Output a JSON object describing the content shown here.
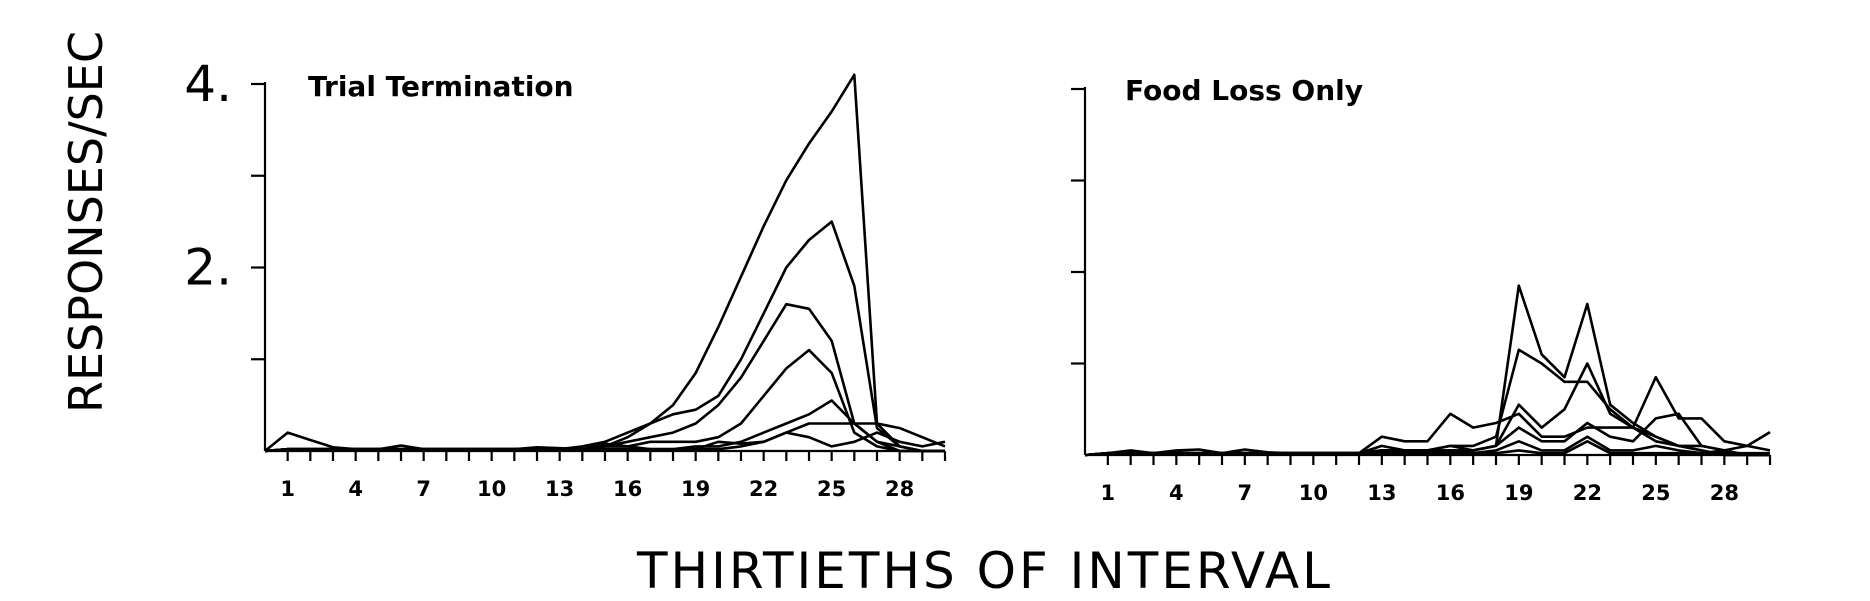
{
  "ylabel": "RESPONSES/SEC",
  "xlabel": "THIRTIETHS OF INTERVAL",
  "chart_data": [
    {
      "type": "line",
      "title": "Trial Termination",
      "xlabel": "THIRTIETHS OF INTERVAL",
      "ylabel": "RESPONSES/SEC",
      "xlim": [
        0,
        30
      ],
      "ylim": [
        0,
        4
      ],
      "x_ticks": [
        1,
        2,
        3,
        4,
        5,
        6,
        7,
        8,
        9,
        10,
        11,
        12,
        13,
        14,
        15,
        16,
        17,
        18,
        19,
        20,
        21,
        22,
        23,
        24,
        25,
        26,
        27,
        28,
        29,
        30
      ],
      "x_tick_labels": [
        "1",
        "4",
        "7",
        "10",
        "13",
        "16",
        "19",
        "22",
        "25",
        "28"
      ],
      "x_tick_label_values": [
        1,
        4,
        7,
        10,
        13,
        16,
        19,
        22,
        25,
        28
      ],
      "y_ticks": [
        1,
        2,
        3,
        4
      ],
      "y_tick_labels": [
        "2.",
        "4."
      ],
      "y_tick_label_values": [
        2,
        4
      ],
      "x": [
        0,
        1,
        2,
        3,
        4,
        5,
        6,
        7,
        8,
        9,
        10,
        11,
        12,
        13,
        14,
        15,
        16,
        17,
        18,
        19,
        20,
        21,
        22,
        23,
        24,
        25,
        26,
        27,
        28,
        29,
        30
      ],
      "series": [
        {
          "values": [
            0,
            0.02,
            0.02,
            0.02,
            0.02,
            0.02,
            0.02,
            0.02,
            0.02,
            0.02,
            0.02,
            0.02,
            0.02,
            0.02,
            0.02,
            0.05,
            0.15,
            0.3,
            0.5,
            0.85,
            1.35,
            1.9,
            2.45,
            2.95,
            3.35,
            3.7,
            4.1,
            0.3,
            0.05,
            0,
            0
          ]
        },
        {
          "values": [
            0,
            0.02,
            0.02,
            0.02,
            0.02,
            0.02,
            0.02,
            0.02,
            0.02,
            0.02,
            0.02,
            0.02,
            0.02,
            0.02,
            0.05,
            0.1,
            0.2,
            0.3,
            0.4,
            0.45,
            0.6,
            1.0,
            1.5,
            2.0,
            2.3,
            2.5,
            1.8,
            0.25,
            0.05,
            0,
            0
          ]
        },
        {
          "values": [
            0,
            0.02,
            0.02,
            0.02,
            0.02,
            0.02,
            0.02,
            0.02,
            0.02,
            0.02,
            0.02,
            0.02,
            0.02,
            0.02,
            0.02,
            0.05,
            0.1,
            0.15,
            0.2,
            0.3,
            0.5,
            0.8,
            1.2,
            1.6,
            1.55,
            1.2,
            0.3,
            0.1,
            0,
            0,
            0
          ]
        },
        {
          "values": [
            0,
            0.02,
            0.02,
            0.02,
            0.02,
            0.02,
            0.02,
            0.02,
            0.02,
            0.02,
            0.02,
            0.02,
            0.02,
            0.02,
            0.02,
            0.05,
            0.05,
            0.1,
            0.1,
            0.1,
            0.15,
            0.3,
            0.6,
            0.9,
            1.1,
            0.85,
            0.2,
            0.05,
            0,
            0,
            0
          ]
        },
        {
          "values": [
            0,
            0.02,
            0.02,
            0.02,
            0.02,
            0.02,
            0.02,
            0.02,
            0.02,
            0.02,
            0.02,
            0.02,
            0.02,
            0.02,
            0.02,
            0.02,
            0.02,
            0.02,
            0.02,
            0.05,
            0.05,
            0.1,
            0.2,
            0.3,
            0.4,
            0.55,
            0.3,
            0.1,
            0.05,
            0,
            0
          ]
        },
        {
          "values": [
            0,
            0.2,
            0.12,
            0.04,
            0.02,
            0.02,
            0.06,
            0.02,
            0.02,
            0.02,
            0.02,
            0.02,
            0.04,
            0.03,
            0.02,
            0.02,
            0.02,
            0.02,
            0.02,
            0.02,
            0.02,
            0.05,
            0.1,
            0.2,
            0.3,
            0.3,
            0.3,
            0.3,
            0.25,
            0.15,
            0.05
          ]
        },
        {
          "values": [
            0,
            0.02,
            0.02,
            0.02,
            0.02,
            0.02,
            0.02,
            0.02,
            0.02,
            0.02,
            0.02,
            0.02,
            0.02,
            0.02,
            0.02,
            0.08,
            0.05,
            0.02,
            0.02,
            0.02,
            0.1,
            0.08,
            0.1,
            0.2,
            0.15,
            0.05,
            0.1,
            0.2,
            0.1,
            0.05,
            0.1
          ]
        }
      ]
    },
    {
      "type": "line",
      "title": "Food Loss Only",
      "xlabel": "THIRTIETHS OF INTERVAL",
      "ylabel": "RESPONSES/SEC",
      "xlim": [
        0,
        30
      ],
      "ylim": [
        0,
        4
      ],
      "x_ticks": [
        1,
        2,
        3,
        4,
        5,
        6,
        7,
        8,
        9,
        10,
        11,
        12,
        13,
        14,
        15,
        16,
        17,
        18,
        19,
        20,
        21,
        22,
        23,
        24,
        25,
        26,
        27,
        28,
        29,
        30
      ],
      "x_tick_labels": [
        "1",
        "4",
        "7",
        "10",
        "13",
        "16",
        "19",
        "22",
        "25",
        "28"
      ],
      "x_tick_label_values": [
        1,
        4,
        7,
        10,
        13,
        16,
        19,
        22,
        25,
        28
      ],
      "y_ticks": [
        1,
        2,
        3,
        4
      ],
      "y_tick_labels": [],
      "y_tick_label_values": [],
      "x": [
        0,
        1,
        2,
        3,
        4,
        5,
        6,
        7,
        8,
        9,
        10,
        11,
        12,
        13,
        14,
        15,
        16,
        17,
        18,
        19,
        20,
        21,
        22,
        23,
        24,
        25,
        26,
        27,
        28,
        29,
        30
      ],
      "series": [
        {
          "values": [
            0,
            0.02,
            0.02,
            0.02,
            0.02,
            0.02,
            0.02,
            0.02,
            0.02,
            0.02,
            0.02,
            0.02,
            0.02,
            0.05,
            0.05,
            0.05,
            0.05,
            0.05,
            0.1,
            1.85,
            1.1,
            0.85,
            1.65,
            0.55,
            0.35,
            0.2,
            0.1,
            0.1,
            0.05,
            0,
            0
          ]
        },
        {
          "values": [
            0,
            0.02,
            0.02,
            0.02,
            0.02,
            0.02,
            0.02,
            0.02,
            0.02,
            0.02,
            0.02,
            0.02,
            0.02,
            0.05,
            0.05,
            0.05,
            0.1,
            0.1,
            0.2,
            1.15,
            1.0,
            0.8,
            0.8,
            0.5,
            0.3,
            0.15,
            0.1,
            0.05,
            0,
            0,
            0
          ]
        },
        {
          "values": [
            0,
            0.02,
            0.02,
            0.02,
            0.02,
            0.02,
            0.02,
            0.02,
            0.02,
            0.02,
            0.02,
            0.02,
            0.02,
            0.05,
            0.05,
            0.05,
            0.05,
            0.05,
            0.1,
            0.55,
            0.3,
            0.5,
            1.0,
            0.45,
            0.3,
            0.2,
            0.1,
            0.05,
            0,
            0,
            0
          ]
        },
        {
          "values": [
            0,
            0.02,
            0.02,
            0.02,
            0.02,
            0.02,
            0.02,
            0.02,
            0.02,
            0.02,
            0.02,
            0.02,
            0.02,
            0.2,
            0.15,
            0.15,
            0.45,
            0.3,
            0.35,
            0.45,
            0.2,
            0.2,
            0.3,
            0.3,
            0.3,
            0.85,
            0.4,
            0.4,
            0.15,
            0.1,
            0.25
          ]
        },
        {
          "values": [
            0,
            0.02,
            0.02,
            0.02,
            0.02,
            0.02,
            0.02,
            0.02,
            0.02,
            0.02,
            0.02,
            0.02,
            0.02,
            0.1,
            0.05,
            0.05,
            0.1,
            0.05,
            0.1,
            0.3,
            0.15,
            0.15,
            0.35,
            0.2,
            0.15,
            0.4,
            0.45,
            0.1,
            0.05,
            0,
            0
          ]
        },
        {
          "values": [
            0,
            0.02,
            0.05,
            0.02,
            0.05,
            0.06,
            0.02,
            0.06,
            0.03,
            0.02,
            0.02,
            0.02,
            0.02,
            0.05,
            0.02,
            0.02,
            0.05,
            0.02,
            0.05,
            0.15,
            0.05,
            0.05,
            0.2,
            0.05,
            0.05,
            0.1,
            0.05,
            0.02,
            0.05,
            0.1,
            0.05
          ]
        },
        {
          "values": [
            0,
            0.02,
            0.02,
            0.02,
            0.02,
            0.02,
            0.02,
            0.02,
            0.02,
            0.02,
            0.02,
            0.02,
            0.02,
            0.02,
            0.02,
            0.02,
            0.02,
            0.02,
            0.02,
            0.05,
            0.02,
            0.02,
            0.15,
            0.02,
            0.02,
            0.02,
            0.02,
            0.02,
            0.02,
            0.02,
            0.02
          ]
        }
      ]
    }
  ]
}
